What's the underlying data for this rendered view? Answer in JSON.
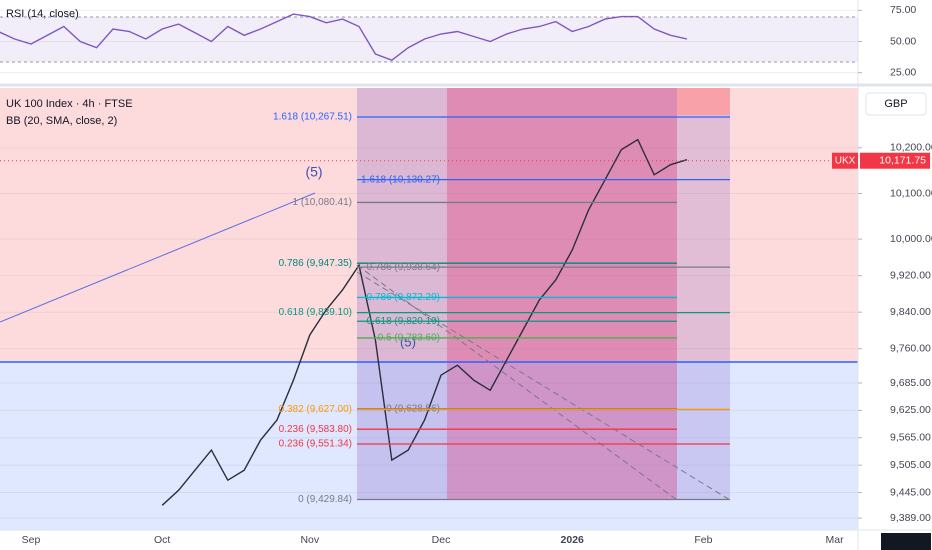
{
  "chart_data": [
    {
      "type": "line",
      "title": "RSI (14, close)",
      "color": "#7e57c2",
      "values": [
        58,
        52,
        48,
        55,
        62,
        50,
        45,
        60,
        58,
        52,
        60,
        64,
        57,
        50,
        62,
        55,
        60,
        66,
        72,
        70,
        65,
        68,
        62,
        40,
        35,
        45,
        52,
        56,
        58,
        54,
        50,
        56,
        60,
        62,
        66,
        58,
        62,
        68,
        70,
        70,
        60,
        55,
        52
      ],
      "ylim": [
        16.7,
        83.3
      ],
      "yticks": [
        {
          "value": 25,
          "label": "25.00"
        },
        {
          "value": 50,
          "label": "50.00"
        },
        {
          "value": 75,
          "label": "75.00"
        }
      ]
    },
    {
      "type": "line",
      "title": "UK 100 Index · 4h · FTSE",
      "subtitle": "BB (20, SMA, close, 2)",
      "currency": "GBP",
      "annotations": [
        "(5)",
        "(5)"
      ],
      "color": "#2a2e39",
      "categories": [
        null,
        null,
        "Sep",
        null,
        null,
        null,
        null,
        null,
        null,
        null,
        "Oct",
        null,
        null,
        null,
        null,
        null,
        null,
        null,
        null,
        "Nov",
        null,
        null,
        null,
        null,
        null,
        null,
        null,
        "Dec",
        null,
        null,
        null,
        null,
        null,
        null,
        null,
        "2026",
        null,
        null,
        null,
        null,
        null,
        null,
        null,
        "Feb",
        null,
        null,
        null,
        null,
        null,
        null,
        null,
        "Mar",
        null
      ],
      "values": [
        null,
        null,
        null,
        null,
        null,
        null,
        null,
        null,
        null,
        null,
        9417,
        9450,
        9494,
        9538,
        9472,
        9494,
        9560,
        9604,
        9691,
        9790,
        9845,
        9889,
        9943,
        9779,
        9516,
        9538,
        9604,
        9702,
        9724,
        9691,
        9669,
        9735,
        9801,
        9867,
        9911,
        9976,
        10064,
        10130,
        10196,
        10218,
        10141,
        10163,
        10174,
        null,
        null,
        null,
        null,
        null,
        null,
        null,
        null,
        null,
        null
      ],
      "ylim": [
        9363,
        10331
      ],
      "yticks": [
        {
          "value": 9389,
          "label": "9,389.00"
        },
        {
          "value": 9445,
          "label": "9,445.00"
        },
        {
          "value": 9505,
          "label": "9,505.00"
        },
        {
          "value": 9565,
          "label": "9,565.00"
        },
        {
          "value": 9625,
          "label": "9,625.00"
        },
        {
          "value": 9685,
          "label": "9,685.00"
        },
        {
          "value": 9760,
          "label": "9,760.00"
        },
        {
          "value": 9840,
          "label": "9,840.00"
        },
        {
          "value": 9920,
          "label": "9,920.00"
        },
        {
          "value": 10000,
          "label": "10,000.00"
        },
        {
          "value": 10100,
          "label": "10,100.00"
        },
        {
          "value": 10200,
          "label": "10,200.00"
        }
      ],
      "last_price": {
        "symbol": "UKX",
        "value": 10171.75,
        "label": "10,171.75",
        "color": "#f23645"
      },
      "fib_levels": [
        {
          "value": 10267.51,
          "label": "1.618 (10,267.51)",
          "color": "#2962ff"
        },
        {
          "value": 10130.27,
          "label": "1.618 (10,130.27)",
          "color": "#2962ff"
        },
        {
          "value": 10080.41,
          "label": "1 (10,080.41)",
          "color": "#787b86"
        },
        {
          "value": 9947.35,
          "label": "0.786 (9,947.35)",
          "color": "#00897b"
        },
        {
          "value": 9938.64,
          "label": "0.786 (9,938.64)",
          "color": "#787b86"
        },
        {
          "value": 9872.29,
          "label": "0.786 (9,872.29)",
          "color": "#00bcd4"
        },
        {
          "value": 9839.1,
          "label": "0.618 (9,839.10)",
          "color": "#089981"
        },
        {
          "value": 9820.19,
          "label": "0.618 (9,820.19)",
          "color": "#089981"
        },
        {
          "value": 9783.6,
          "label": "0.5 (9,783.60)",
          "color": "#4caf50"
        },
        {
          "value": 9628.56,
          "label": "0 (9,628.56)",
          "color": "#787b86"
        },
        {
          "value": 9627.0,
          "label": "0.382 (9,627.00)",
          "color": "#ff9800"
        },
        {
          "value": 9583.8,
          "label": "0.236 (9,583.80)",
          "color": "#f23645"
        },
        {
          "value": 9551.34,
          "label": "0.236 (9,551.34)",
          "color": "#f23645"
        },
        {
          "value": 9429.84,
          "label": "0 (9,429.84)",
          "color": "#787b86"
        }
      ]
    }
  ]
}
